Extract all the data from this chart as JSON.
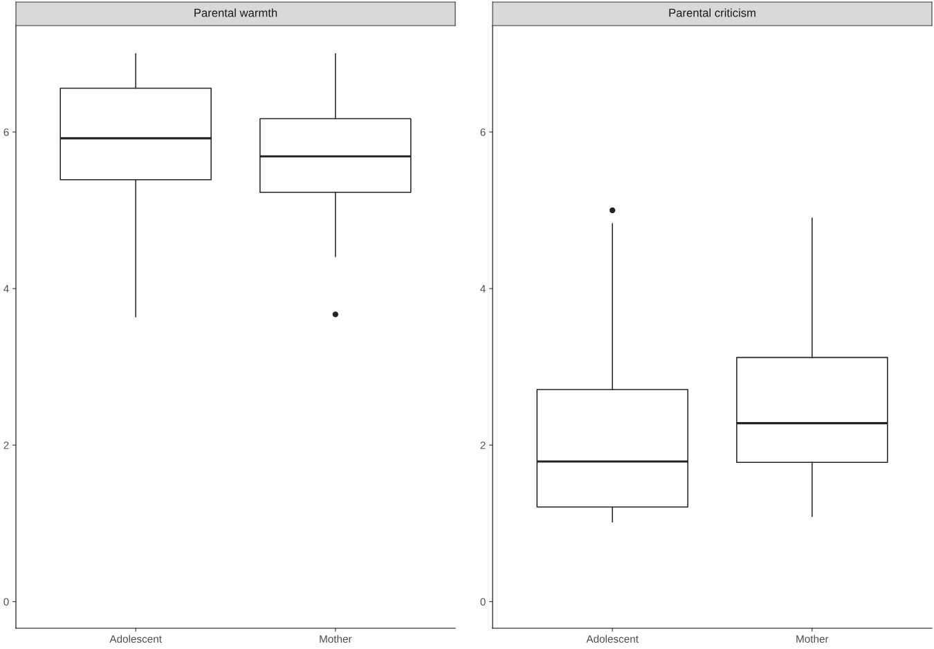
{
  "chart_data": [
    {
      "type": "box",
      "title": "Parental warmth",
      "categories": [
        "Adolescent",
        "Mother"
      ],
      "boxes": [
        {
          "low": 3.64,
          "q1": 5.39,
          "median": 5.92,
          "q3": 6.56,
          "high": 7.0
        },
        {
          "low": 4.41,
          "q1": 5.23,
          "median": 5.69,
          "q3": 6.17,
          "high": 7.0,
          "outliers": [
            3.67
          ]
        }
      ],
      "ylim": [
        -0.34,
        7.36
      ],
      "yticks": [
        0,
        2,
        4,
        6
      ],
      "grid": false,
      "legend": false
    },
    {
      "type": "box",
      "title": "Parental criticism",
      "categories": [
        "Adolescent",
        "Mother"
      ],
      "boxes": [
        {
          "low": 1.02,
          "q1": 1.21,
          "median": 1.79,
          "q3": 2.71,
          "high": 4.83,
          "outliers": [
            5.0
          ]
        },
        {
          "low": 1.09,
          "q1": 1.78,
          "median": 2.28,
          "q3": 3.12,
          "high": 4.9
        }
      ],
      "ylim": [
        -0.34,
        7.36
      ],
      "yticks": [
        0,
        2,
        4,
        6
      ],
      "grid": false,
      "legend": false
    }
  ]
}
